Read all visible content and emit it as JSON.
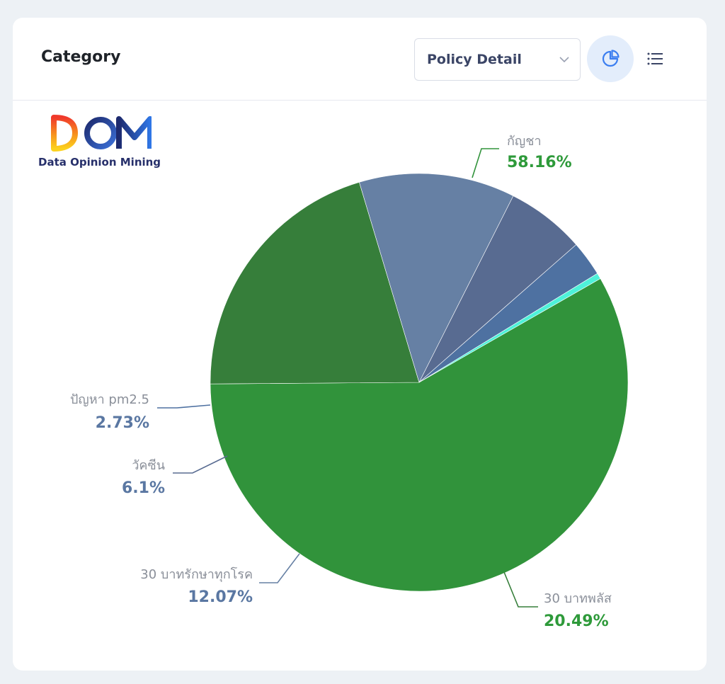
{
  "header": {
    "title": "Category",
    "select_value": "Policy Detail",
    "pie_view_icon": "pie-chart-icon",
    "list_view_icon": "list-icon"
  },
  "logo": {
    "mark": "DOM",
    "text": "Data Opinion Mining"
  },
  "chart_data": {
    "type": "pie",
    "slices": [
      {
        "label": "กัญชา",
        "value_label": "58.16%",
        "value": 58.16,
        "color": "#31933b",
        "label_color": "#2e9a3a"
      },
      {
        "label": "30 บาทพลัส",
        "value_label": "20.49%",
        "value": 20.49,
        "color": "#367e3a",
        "label_color": "#2e9a3a"
      },
      {
        "label": "30 บาทรักษาทุกโรค",
        "value_label": "12.07%",
        "value": 12.07,
        "color": "#6680a4",
        "label_color": "#5a77a2"
      },
      {
        "label": "วัคซีน",
        "value_label": "6.1%",
        "value": 6.1,
        "color": "#586b91",
        "label_color": "#5a77a2"
      },
      {
        "label": "ปัญหา pm2.5",
        "value_label": "2.73%",
        "value": 2.73,
        "color": "#4e71a1",
        "label_color": "#5a77a2"
      },
      {
        "label": "",
        "value_label": "",
        "value": 0.45,
        "color": "#4ef2d9",
        "label_color": ""
      }
    ]
  }
}
